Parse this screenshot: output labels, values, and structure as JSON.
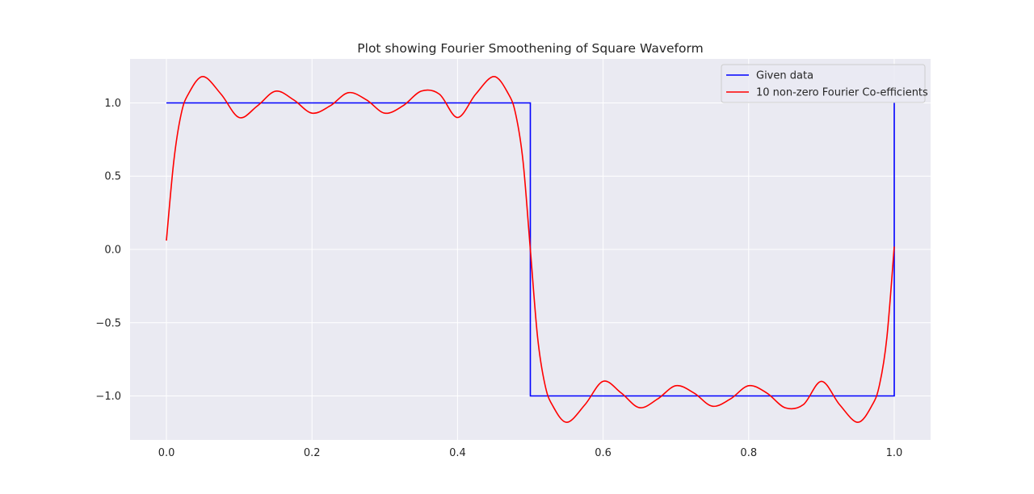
{
  "chart_data": {
    "type": "line",
    "title": "Plot showing Fourier Smoothening of Square Waveform",
    "xlabel": "",
    "ylabel": "",
    "xlim": [
      -0.05,
      1.05
    ],
    "ylim": [
      -1.3,
      1.3
    ],
    "x_ticks": [
      0.0,
      0.2,
      0.4,
      0.6,
      0.8,
      1.0
    ],
    "x_tick_labels": [
      "0.0",
      "0.2",
      "0.4",
      "0.6",
      "0.8",
      "1.0"
    ],
    "y_ticks": [
      1.0,
      0.5,
      0.0,
      -0.5,
      -1.0
    ],
    "y_tick_labels": [
      "1.0",
      "0.5",
      "0.0",
      "−0.5",
      "−1.0"
    ],
    "grid": true,
    "legend_position": "top-right",
    "colors": {
      "background": "#eaeaf2",
      "grid": "#ffffff",
      "given": "#0000ff",
      "fourier": "#ff0000"
    },
    "series": [
      {
        "name": "Given data",
        "color": "#0000ff",
        "x": [
          0.0,
          0.5,
          0.5,
          1.0,
          1.0
        ],
        "y": [
          1.0,
          1.0,
          -1.0,
          -1.0,
          1.0
        ]
      },
      {
        "name": "10 non-zero Fourier Co-efficients",
        "color": "#ff0000",
        "x": [
          0.0,
          0.01,
          0.02,
          0.03,
          0.05,
          0.075,
          0.1,
          0.125,
          0.15,
          0.175,
          0.2,
          0.225,
          0.25,
          0.275,
          0.3,
          0.325,
          0.35,
          0.375,
          0.4,
          0.425,
          0.45,
          0.47,
          0.48,
          0.49,
          0.5,
          0.51,
          0.52,
          0.53,
          0.55,
          0.575,
          0.6,
          0.625,
          0.65,
          0.675,
          0.7,
          0.725,
          0.75,
          0.775,
          0.8,
          0.825,
          0.85,
          0.875,
          0.9,
          0.925,
          0.95,
          0.97,
          0.98,
          0.99,
          1.0
        ],
        "y": [
          0.06,
          0.6,
          0.92,
          1.06,
          1.18,
          1.06,
          0.9,
          0.98,
          1.08,
          1.02,
          0.93,
          0.98,
          1.07,
          1.02,
          0.93,
          0.98,
          1.08,
          1.06,
          0.9,
          1.06,
          1.18,
          1.06,
          0.92,
          0.6,
          0.0,
          -0.6,
          -0.92,
          -1.06,
          -1.18,
          -1.06,
          -0.9,
          -0.98,
          -1.08,
          -1.02,
          -0.93,
          -0.98,
          -1.07,
          -1.02,
          -0.93,
          -0.98,
          -1.08,
          -1.06,
          -0.9,
          -1.06,
          -1.18,
          -1.06,
          -0.92,
          -0.6,
          0.02
        ]
      }
    ]
  }
}
